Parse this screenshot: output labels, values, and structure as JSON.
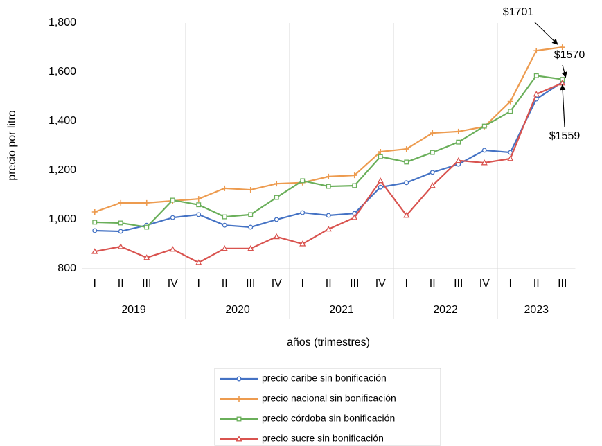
{
  "chart_data": {
    "type": "line",
    "ylabel": "precio por litro",
    "xlabel": "años (trimestres)",
    "categories": [
      "I",
      "II",
      "III",
      "IV",
      "I",
      "II",
      "III",
      "IV",
      "I",
      "II",
      "III",
      "IV",
      "I",
      "II",
      "III",
      "IV",
      "I",
      "II",
      "III"
    ],
    "year_groups": [
      "2019",
      "2020",
      "2021",
      "2022",
      "2023"
    ],
    "ylim": [
      800,
      1800
    ],
    "yticks": [
      800,
      {
        "value": 1000,
        "label": "1,000"
      },
      {
        "value": 1200,
        "label": "1,200"
      },
      {
        "value": 1400,
        "label": "1,400"
      },
      {
        "value": 1600,
        "label": "1,600"
      },
      {
        "value": 1800,
        "label": "1,800"
      }
    ],
    "series": [
      {
        "name": "precio caribe sin bonificación",
        "color": "#4472c4",
        "marker": "circle",
        "values": [
          955,
          952,
          977,
          1008,
          1020,
          977,
          969,
          1000,
          1028,
          1017,
          1025,
          1132,
          1150,
          1192,
          1225,
          1282,
          1273,
          1490,
          1559
        ]
      },
      {
        "name": "precio nacional sin bonificación",
        "color": "#ed9b4f",
        "marker": "plus",
        "values": [
          1031,
          1068,
          1068,
          1076,
          1084,
          1127,
          1121,
          1146,
          1150,
          1175,
          1180,
          1276,
          1287,
          1352,
          1358,
          1378,
          1480,
          1687,
          1701
        ]
      },
      {
        "name": "precio córdoba sin bonificación",
        "color": "#6aaf5a",
        "marker": "square",
        "values": [
          989,
          986,
          969,
          1079,
          1060,
          1011,
          1020,
          1090,
          1158,
          1135,
          1138,
          1256,
          1234,
          1273,
          1315,
          1380,
          1440,
          1585,
          1570
        ]
      },
      {
        "name": "precio sucre sin bonificación",
        "color": "#d9534f",
        "marker": "triangle",
        "values": [
          870,
          890,
          845,
          879,
          825,
          882,
          882,
          930,
          901,
          961,
          1008,
          1158,
          1017,
          1138,
          1240,
          1231,
          1248,
          1510,
          1555
        ]
      }
    ],
    "annotations": [
      "$1701",
      "$1570",
      "$1559"
    ]
  }
}
